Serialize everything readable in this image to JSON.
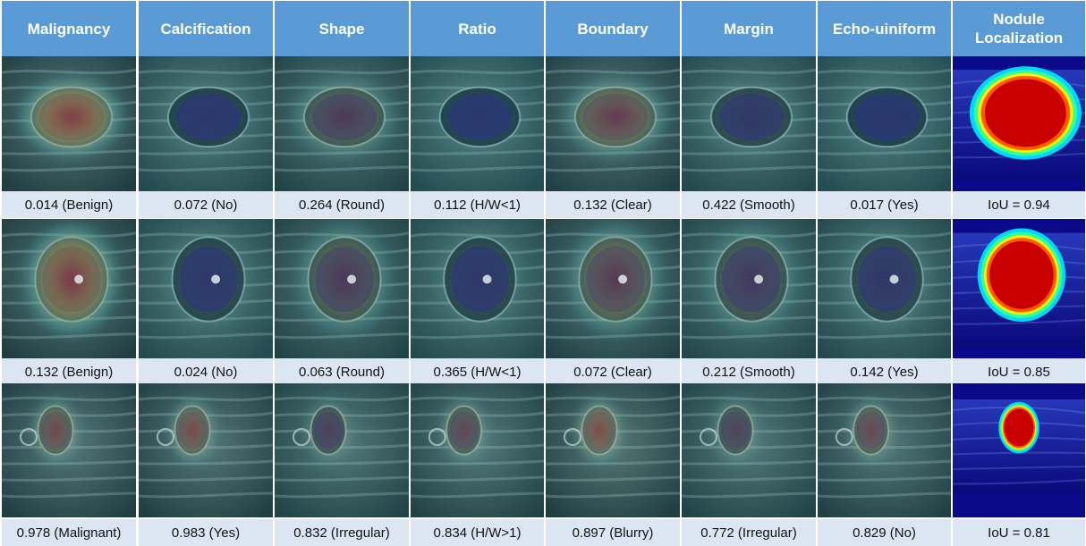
{
  "columns": [
    {
      "label": "Malignancy"
    },
    {
      "label": "Calcification"
    },
    {
      "label": "Shape"
    },
    {
      "label": "Ratio"
    },
    {
      "label": "Boundary"
    },
    {
      "label": "Margin"
    },
    {
      "label": "Echo-uiniform"
    },
    {
      "label": "Nodule Localization"
    }
  ],
  "rows": [
    {
      "captions": [
        "0.014 (Benign)",
        "0.072 (No)",
        "0.264 (Round)",
        "0.112 (H/W<1)",
        "0.132 (Clear)",
        "0.422 (Smooth)",
        "0.017 (Yes)",
        "IoU = 0.94"
      ]
    },
    {
      "captions": [
        "0.132 (Benign)",
        "0.024 (No)",
        "0.063 (Round)",
        "0.365 (H/W<1)",
        "0.072 (Clear)",
        "0.212 (Smooth)",
        "0.142 (Yes)",
        "IoU = 0.85"
      ]
    },
    {
      "captions": [
        "0.978 (Malignant)",
        "0.983 (Yes)",
        "0.832 (Irregular)",
        "0.834 (H/W>1)",
        "0.897 (Blurry)",
        "0.772 (Irregular)",
        "0.829 (No)",
        "IoU = 0.81"
      ]
    }
  ],
  "colors": {
    "header_bg": "#5b9bd5",
    "caption_bg": "#dce5f2",
    "heat_hot": "#c0151b",
    "heat_warm": "#e7b43a",
    "heat_cool": "#3fb7c7",
    "heat_cold": "#2a2f8f",
    "localization_bg": "#0a0a8a"
  }
}
